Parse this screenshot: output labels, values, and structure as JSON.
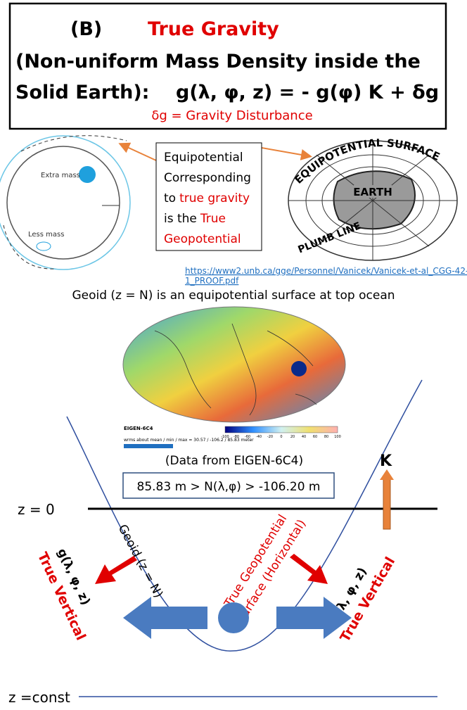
{
  "header": {
    "label": "(B)",
    "title": "True Gravity",
    "line2": "(Non-uniform Mass Density inside the",
    "line3": "Solid Earth):",
    "equation": "g(λ, φ, z)  = - g(φ) K + δg",
    "subtitle": "δg = Gravity Disturbance"
  },
  "left_figure": {
    "extra_mass": "Extra mass",
    "less_mass": "Less mass"
  },
  "callout": {
    "line1": "Equipotential",
    "line2": "Corresponding",
    "line3_prefix": "to",
    "line3_red": "true gravity",
    "line4_prefix": "is the",
    "line4_red": "True",
    "line5_red": "Geopotential"
  },
  "right_figure": {
    "surface": "EQUIPOTENTIAL SURFACE",
    "earth": "EARTH",
    "plumb": "PLUMB LINE"
  },
  "link": [
    "https://www2.unb.ca/gge/Personnel/Vanicek/Vanicek-et-al_CGG-42-",
    "1_PROOF.pdf"
  ],
  "geoid_caption": "Geoid (z = N) is an equipotential surface at top ocean",
  "map": {
    "title": "EIGEN-6C4",
    "info": "wrms about mean / min / max = 30.57 / -106.2 / 85.83 meter",
    "colorbar_ticks": [
      -100,
      -80,
      -60,
      -40,
      -20,
      0,
      20,
      40,
      60,
      80,
      100
    ]
  },
  "data_source": "(Data from  EIGEN-6C4)",
  "range": "85.83 m > N(λ,φ) > -106.20 m",
  "k_label": "K",
  "z0": "z = 0",
  "geoid_label": "Geoid (z = N)",
  "geopotential_label": [
    "True Geopotential",
    "Surface (Horizontal)"
  ],
  "left_vector": {
    "g": "g(λ, φ, z)",
    "vertical": "True Vertical"
  },
  "right_vector": {
    "g": "g(λ, φ, z)",
    "vertical": "True Vertical"
  },
  "zconst": "z =const"
}
